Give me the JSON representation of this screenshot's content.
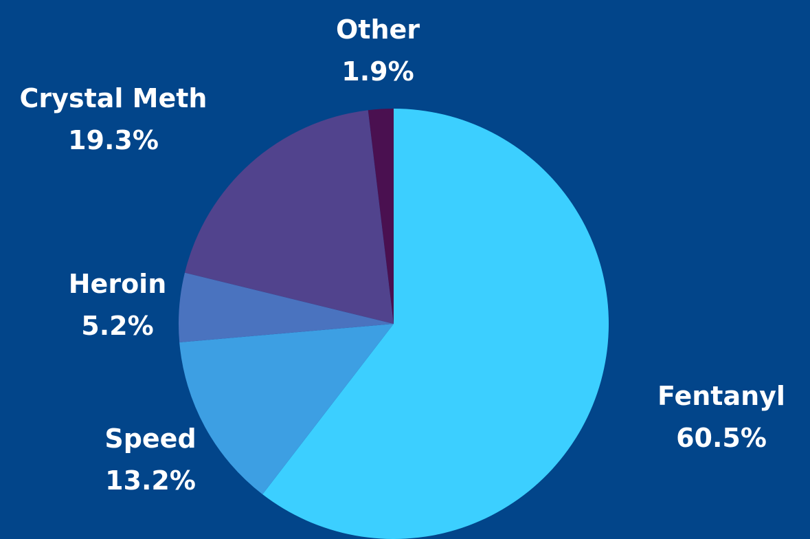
{
  "colors": {
    "background": "#02458a"
  },
  "chart_data": {
    "type": "pie",
    "title": "",
    "slices": [
      {
        "label": "Fentanyl",
        "value": 60.5,
        "display": "60.5%",
        "color": "#3ccfff"
      },
      {
        "label": "Speed",
        "value": 13.2,
        "display": "13.2%",
        "color": "#3d9fe3"
      },
      {
        "label": "Heroin",
        "value": 5.2,
        "display": "5.2%",
        "color": "#4a73bf"
      },
      {
        "label": "Crystal Meth",
        "value": 19.3,
        "display": "19.3%",
        "color": "#51438d"
      },
      {
        "label": "Other",
        "value": 1.9,
        "display": "1.9%",
        "color": "#4a1050"
      }
    ],
    "start_angle": "12 o'clock",
    "direction": "clockwise",
    "legend": "none"
  }
}
